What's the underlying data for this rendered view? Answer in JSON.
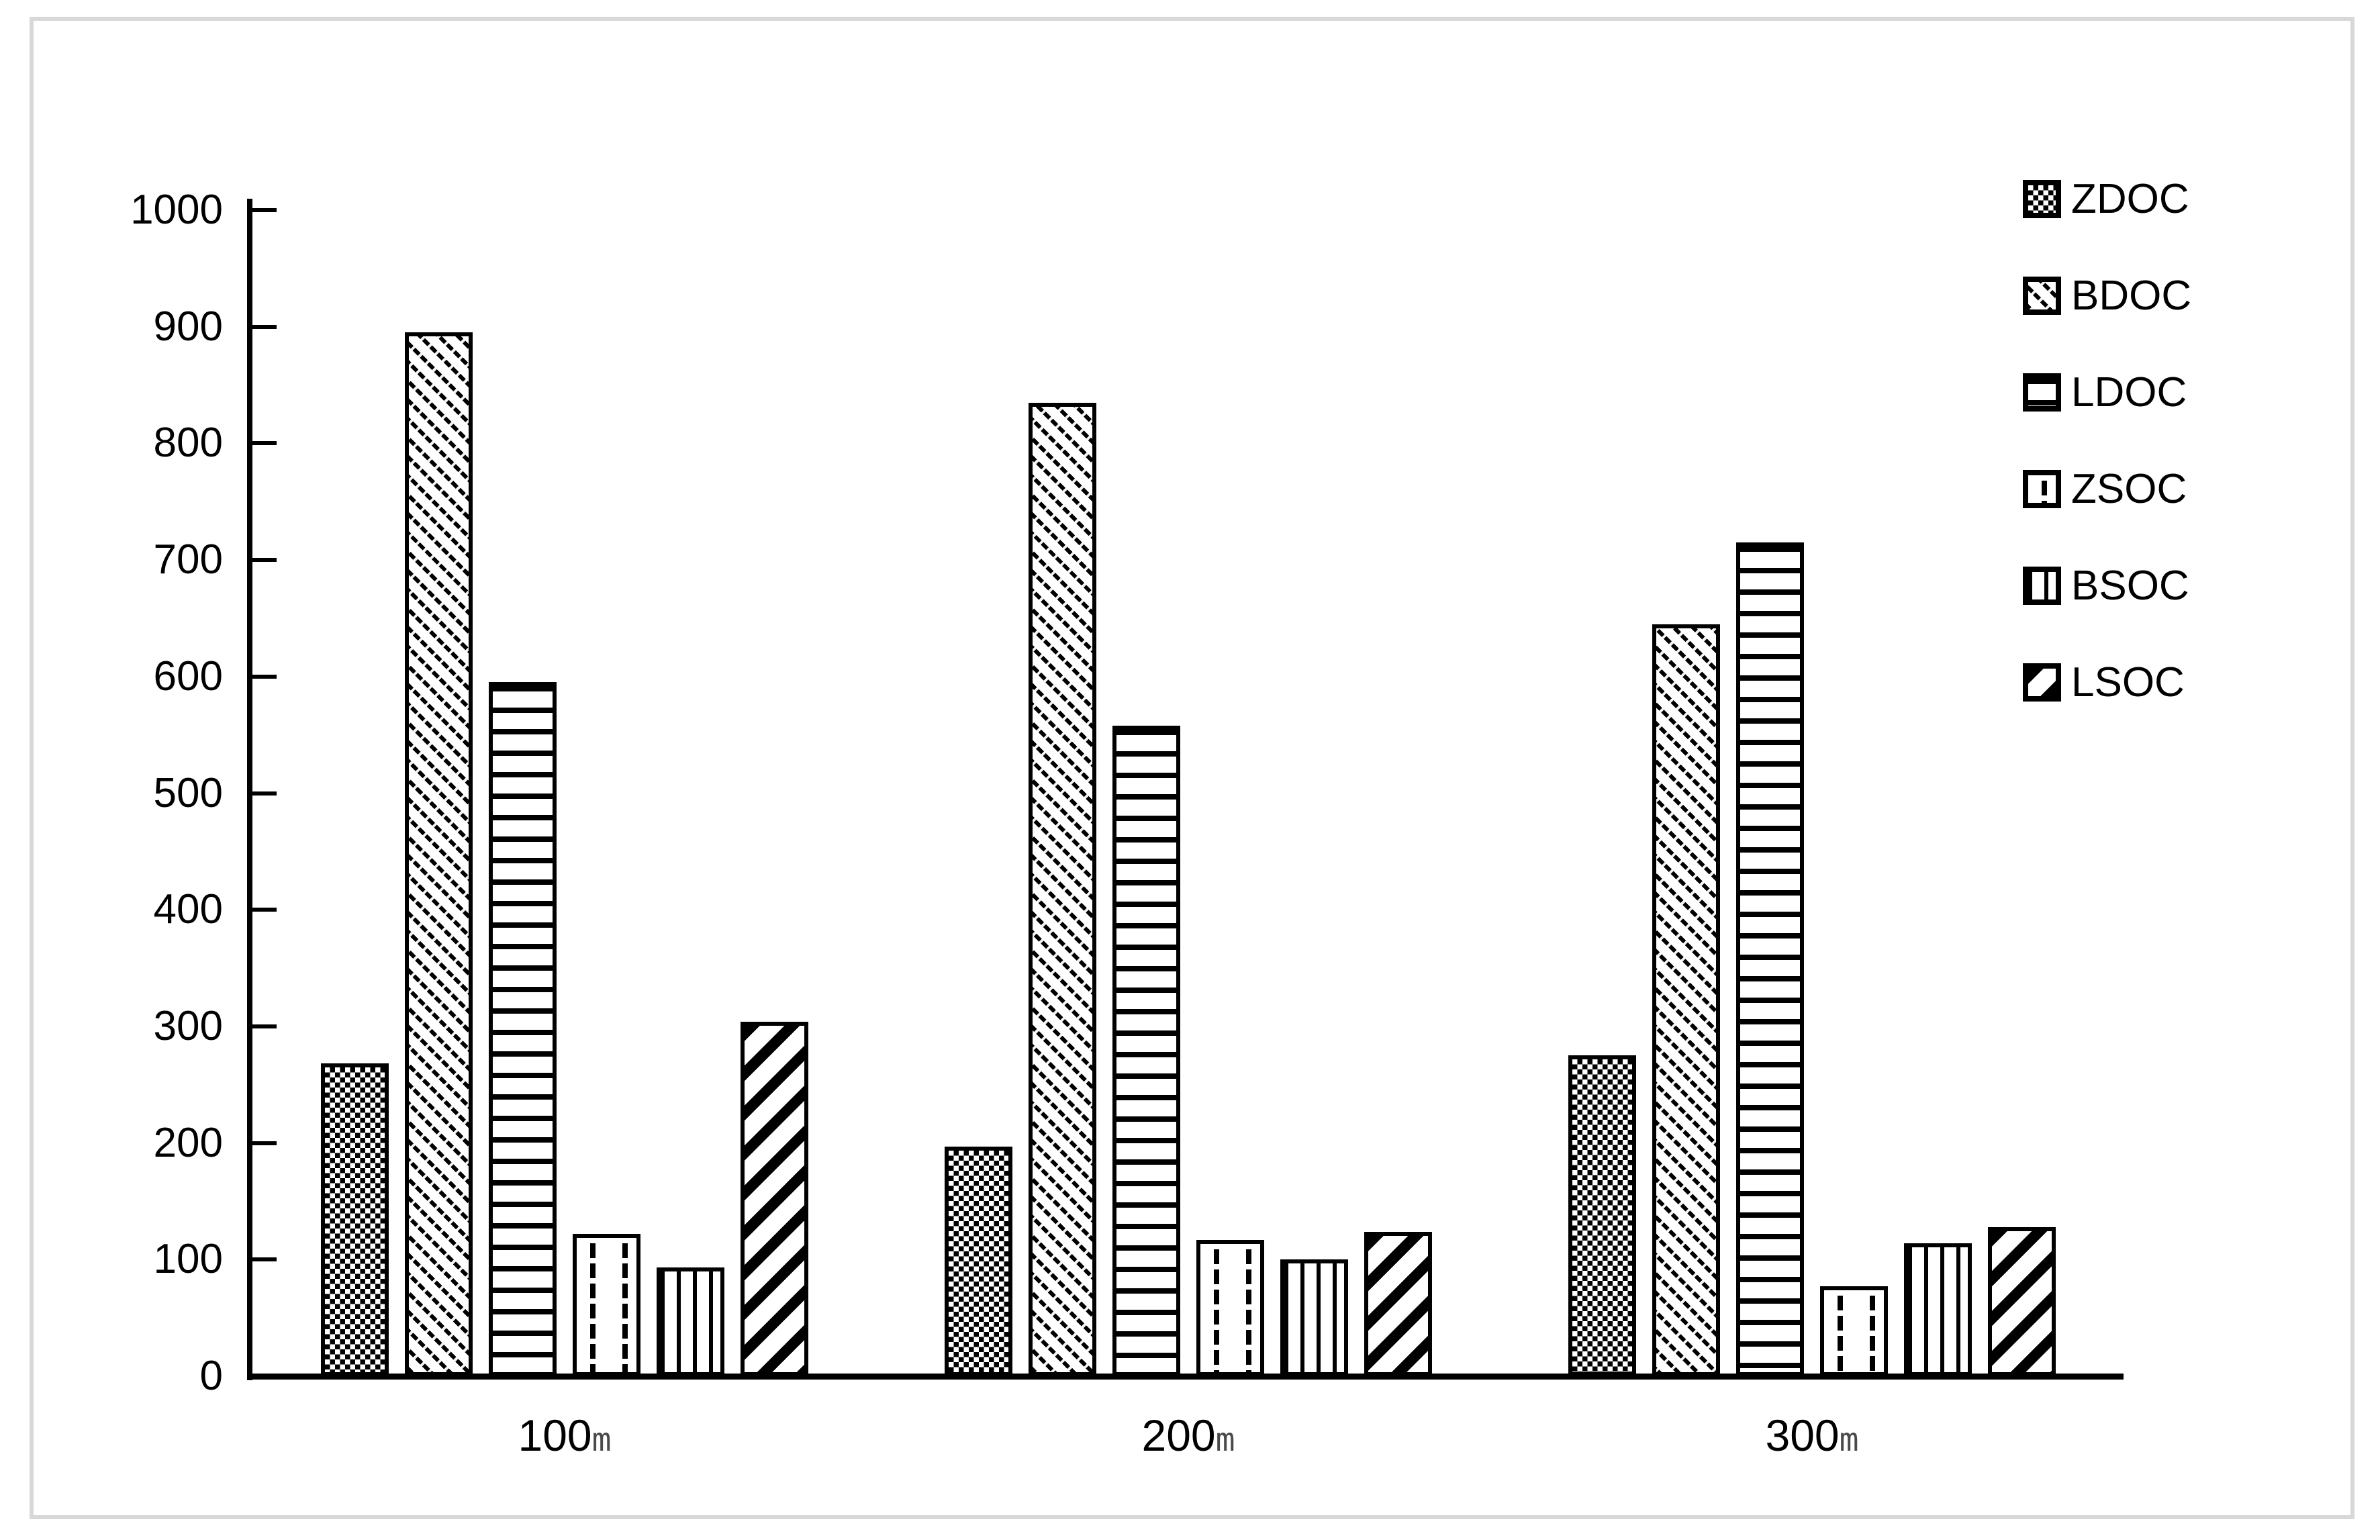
{
  "page": {
    "background": "#ffffff",
    "frame_border_color": "#d8d8d8"
  },
  "chart_data": {
    "type": "bar",
    "title": "",
    "xlabel": "",
    "ylabel": "",
    "categories": [
      "100",
      "200",
      "300"
    ],
    "category_suffix": "m",
    "series": [
      {
        "name": "ZDOC",
        "pattern": "checkerboard",
        "values": [
          268,
          197,
          275
        ]
      },
      {
        "name": "BDOC",
        "pattern": "diagonal-dashed-backslash",
        "values": [
          895,
          835,
          645
        ]
      },
      {
        "name": "LDOC",
        "pattern": "horizontal-lines",
        "values": [
          595,
          558,
          715
        ]
      },
      {
        "name": "ZSOC",
        "pattern": "vertical-dashes-sparse",
        "values": [
          122,
          117,
          77
        ]
      },
      {
        "name": "BSOC",
        "pattern": "vertical-lines",
        "values": [
          93,
          100,
          114
        ]
      },
      {
        "name": "LSOC",
        "pattern": "diagonal-thick-slash",
        "values": [
          304,
          124,
          128
        ]
      }
    ],
    "ylim": [
      0,
      1000
    ],
    "yticks": [
      0,
      100,
      200,
      300,
      400,
      500,
      600,
      700,
      800,
      900,
      1000
    ],
    "grid": false,
    "legend_position": "upper-right",
    "bar_foreground_color": "#000000",
    "bar_background_color": "#ffffff",
    "axis_color": "#000000",
    "category_suffix_color": "#4a4a4a"
  }
}
